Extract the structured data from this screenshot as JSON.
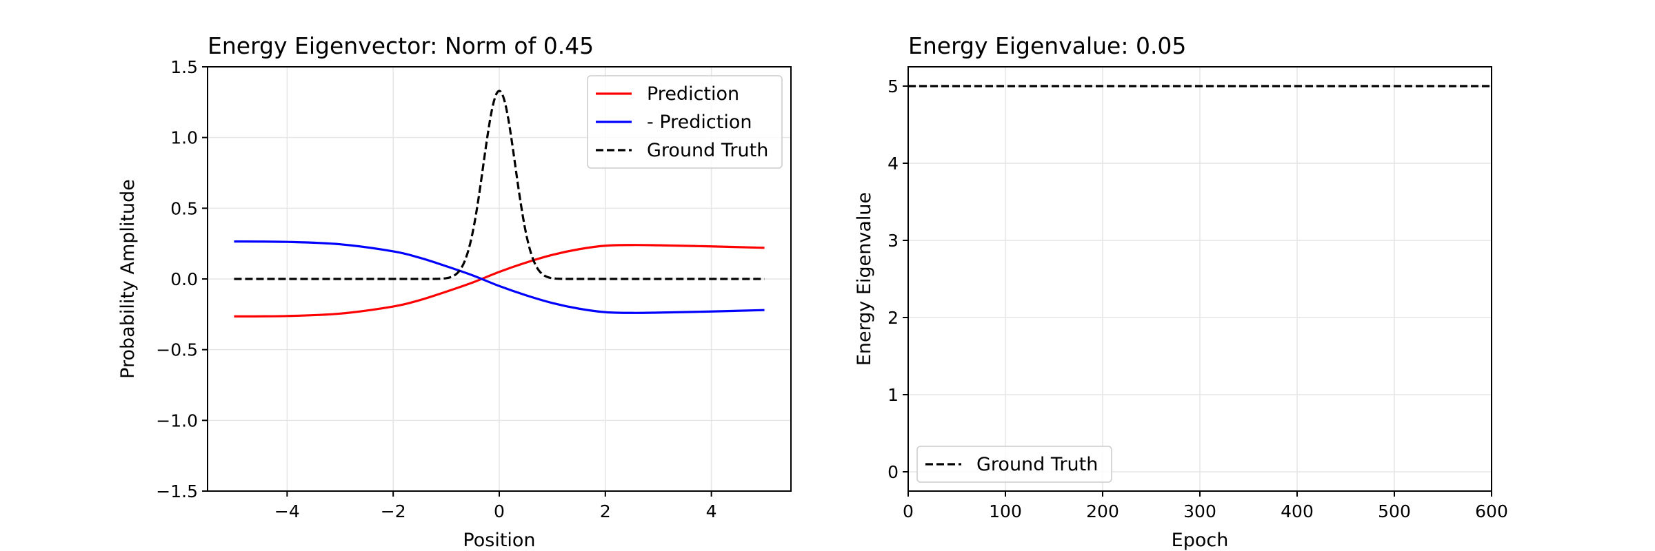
{
  "chart_data": [
    {
      "type": "line",
      "title": "Energy Eigenvector: Norm of 0.45",
      "xlabel": "Position",
      "ylabel": "Probability Amplitude",
      "xlim": [
        -5.5,
        5.5
      ],
      "ylim": [
        -1.5,
        1.5
      ],
      "xticks": [
        -4,
        -2,
        0,
        2,
        4
      ],
      "xtick_labels": [
        "−4",
        "−2",
        "0",
        "2",
        "4"
      ],
      "yticks": [
        -1.5,
        -1.0,
        -0.5,
        0.0,
        0.5,
        1.0,
        1.5
      ],
      "ytick_labels": [
        "−1.5",
        "−1.0",
        "−0.5",
        "0.0",
        "0.5",
        "1.0",
        "1.5"
      ],
      "grid": true,
      "legend_position": "top-right",
      "series": [
        {
          "name": "Prediction",
          "color": "#ff0000",
          "style": "solid",
          "x": [
            -5,
            -4,
            -3,
            -2,
            -1.5,
            -1,
            -0.5,
            0,
            0.5,
            1,
            1.5,
            2,
            2.5,
            3,
            4,
            5
          ],
          "y": [
            -0.265,
            -0.262,
            -0.245,
            -0.195,
            -0.15,
            -0.09,
            -0.025,
            0.05,
            0.115,
            0.17,
            0.21,
            0.235,
            0.24,
            0.238,
            0.23,
            0.22
          ]
        },
        {
          "name": "- Prediction",
          "color": "#0000ff",
          "style": "solid",
          "x": [
            -5,
            -4,
            -3,
            -2,
            -1.5,
            -1,
            -0.5,
            0,
            0.5,
            1,
            1.5,
            2,
            2.5,
            3,
            4,
            5
          ],
          "y": [
            0.265,
            0.262,
            0.245,
            0.195,
            0.15,
            0.09,
            0.025,
            -0.05,
            -0.115,
            -0.17,
            -0.21,
            -0.235,
            -0.24,
            -0.238,
            -0.23,
            -0.22
          ]
        },
        {
          "name": "Ground Truth",
          "color": "#000000",
          "style": "dashed",
          "function": "gaussian",
          "amplitude": 1.33,
          "center": 0,
          "width": 0.3,
          "x_range": [
            -5,
            5
          ]
        }
      ]
    },
    {
      "type": "line",
      "title": "Energy Eigenvalue: 0.05",
      "xlabel": "Epoch",
      "ylabel": "Energy Eigenvalue",
      "xlim": [
        0,
        600
      ],
      "ylim": [
        -0.25,
        5.25
      ],
      "xticks": [
        0,
        100,
        200,
        300,
        400,
        500,
        600
      ],
      "xtick_labels": [
        "0",
        "100",
        "200",
        "300",
        "400",
        "500",
        "600"
      ],
      "yticks": [
        0,
        1,
        2,
        3,
        4,
        5
      ],
      "ytick_labels": [
        "0",
        "1",
        "2",
        "3",
        "4",
        "5"
      ],
      "grid": true,
      "legend_position": "bottom-left",
      "series": [
        {
          "name": "Ground Truth",
          "color": "#000000",
          "style": "dashed",
          "x": [
            0,
            600
          ],
          "y": [
            5,
            5
          ]
        }
      ]
    }
  ]
}
